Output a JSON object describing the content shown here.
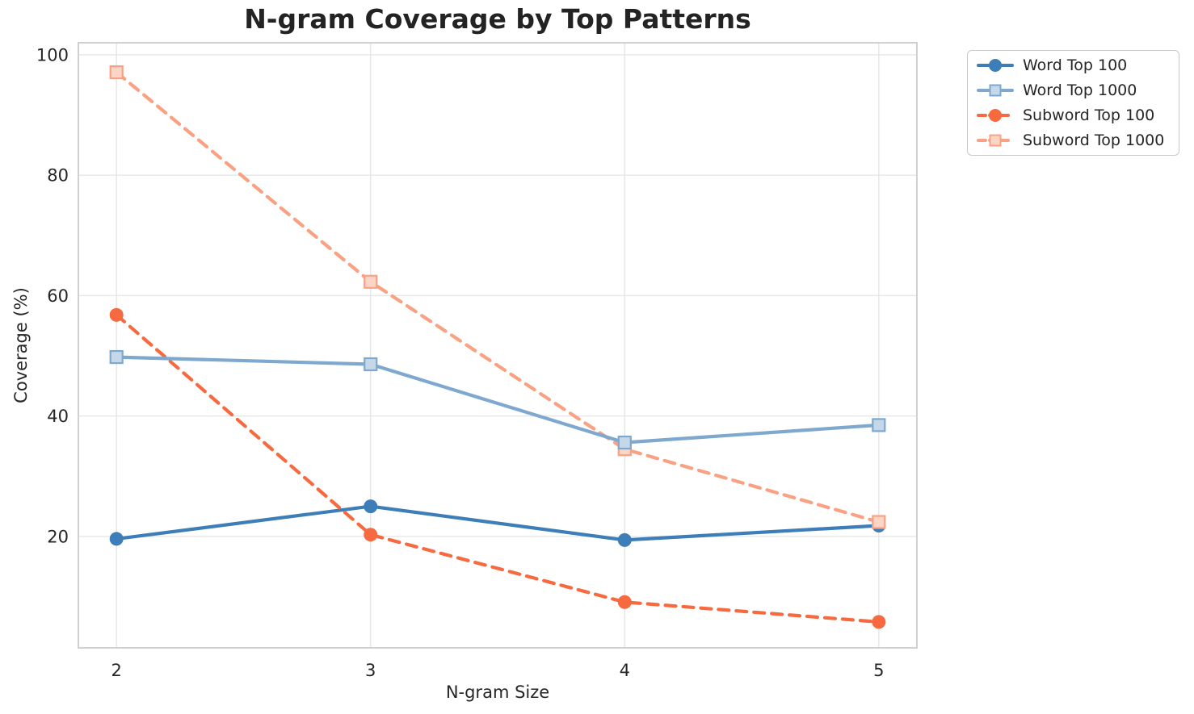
{
  "figure": {
    "background": "#ffffff",
    "text_color": "#262626",
    "grid_color": "#e6e6e6",
    "spine_color": "#cccccc"
  },
  "chart_data": {
    "type": "line",
    "title": "N-gram Coverage by Top Patterns",
    "xlabel": "N-gram Size",
    "ylabel": "Coverage (%)",
    "x": [
      2,
      3,
      4,
      5
    ],
    "xtick_labels": [
      "2",
      "3",
      "4",
      "5"
    ],
    "yticks": [
      20,
      40,
      60,
      80,
      100
    ],
    "xlim": [
      1.85,
      5.15
    ],
    "ylim": [
      1.5,
      102
    ],
    "grid": true,
    "legend": {
      "position": "upper-right-outside",
      "entries": [
        "Word Top 100",
        "Word Top 1000",
        "Subword Top 100",
        "Subword Top 1000"
      ]
    },
    "series": [
      {
        "name": "Word Top 100",
        "color": "#3D7EB8",
        "line_style": "solid",
        "marker": "circle",
        "values": [
          19.6,
          25.0,
          19.4,
          21.8
        ]
      },
      {
        "name": "Word Top 1000",
        "color": "#7FA8CF",
        "line_style": "solid",
        "marker": "square",
        "values": [
          49.8,
          48.6,
          35.6,
          38.5
        ]
      },
      {
        "name": "Subword Top 100",
        "color": "#F7693F",
        "line_style": "dashed",
        "marker": "circle",
        "values": [
          56.8,
          20.3,
          9.1,
          5.8
        ]
      },
      {
        "name": "Subword Top 1000",
        "color": "#FAA183",
        "line_style": "dashed",
        "marker": "square",
        "values": [
          97.1,
          62.3,
          34.5,
          22.4
        ]
      }
    ]
  }
}
